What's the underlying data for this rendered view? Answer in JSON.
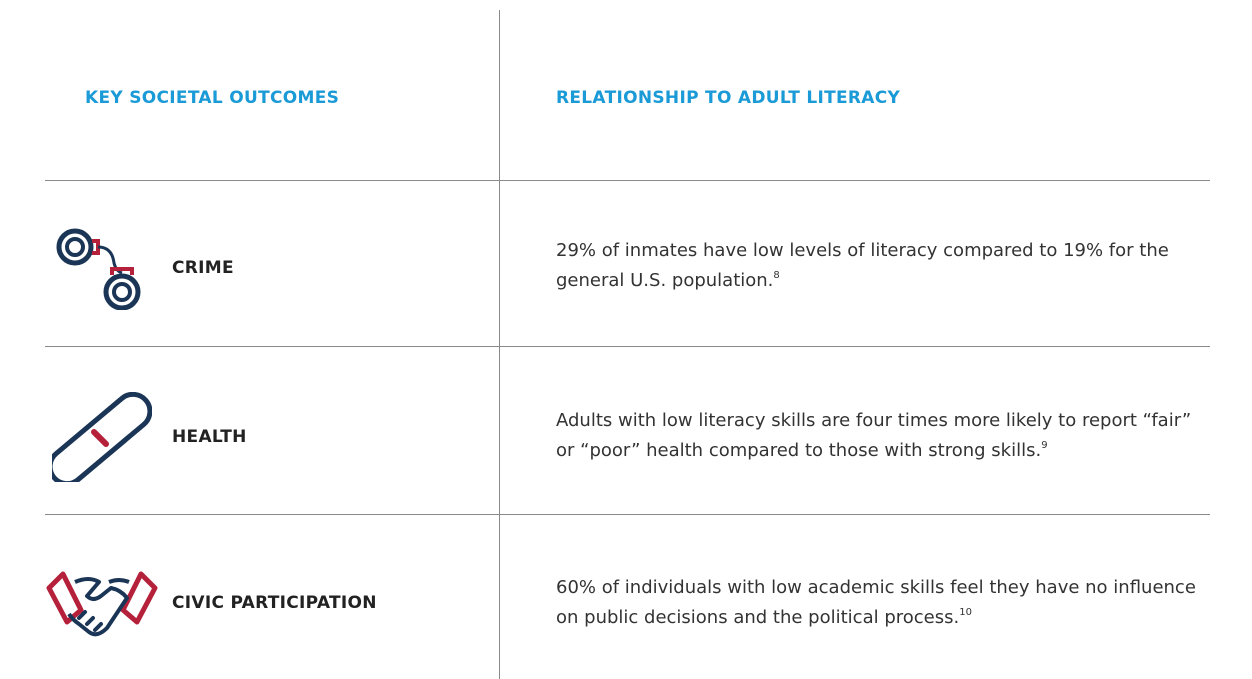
{
  "table": {
    "headers": [
      "KEY SOCIETAL OUTCOMES",
      "RELATIONSHIP TO ADULT LITERACY"
    ],
    "rows": [
      {
        "outcome": "CRIME",
        "text": "29% of inmates have low levels of literacy compared to 19% for the general U.S. population.",
        "note": "8"
      },
      {
        "outcome": "HEALTH",
        "text": "Adults with low literacy skills are four times more likely to report “fair” or “poor” health compared to those with strong skills.",
        "note": "9"
      },
      {
        "outcome": "CIVIC PARTICIPATION",
        "text": "60% of individuals with low academic skills feel they have no influence on public decisions and the political process.",
        "note": "10"
      }
    ]
  }
}
